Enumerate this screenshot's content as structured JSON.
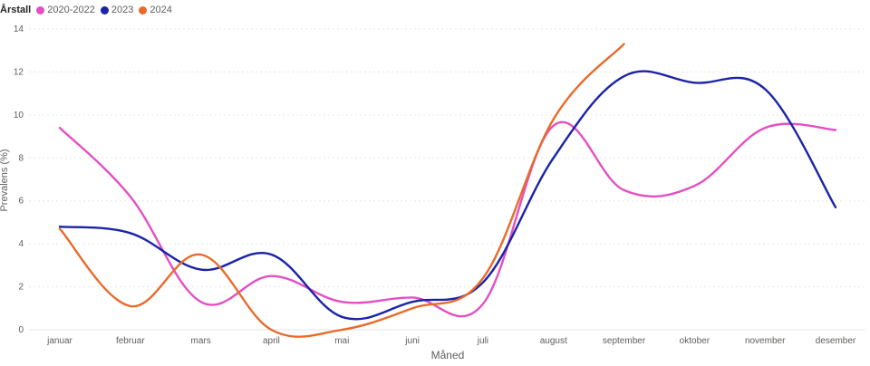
{
  "legend": {
    "title": "Årstall"
  },
  "chart_data": {
    "type": "line",
    "xlabel": "Måned",
    "ylabel": "Prevalens (%)",
    "ylim": [
      0,
      14
    ],
    "yticks": [
      0,
      2,
      4,
      6,
      8,
      10,
      12,
      14
    ],
    "grid": true,
    "legend_position": "top-left",
    "categories": [
      "januar",
      "februar",
      "mars",
      "april",
      "mai",
      "juni",
      "juli",
      "august",
      "september",
      "oktober",
      "november",
      "desember"
    ],
    "series": [
      {
        "name": "2020-2022",
        "color": "#e44fc4",
        "values": [
          9.4,
          6.2,
          1.3,
          2.5,
          1.3,
          1.5,
          1.2,
          9.5,
          6.5,
          6.7,
          9.4,
          9.3
        ]
      },
      {
        "name": "2023",
        "color": "#1a23a8",
        "values": [
          4.8,
          4.5,
          2.8,
          3.5,
          0.6,
          1.3,
          2.2,
          8.0,
          11.8,
          11.5,
          11.2,
          5.7
        ]
      },
      {
        "name": "2024",
        "color": "#e86b2a",
        "values": [
          4.7,
          1.1,
          3.5,
          0.0,
          0.0,
          1.0,
          2.4,
          9.8,
          13.3,
          null,
          null,
          null
        ]
      }
    ]
  }
}
